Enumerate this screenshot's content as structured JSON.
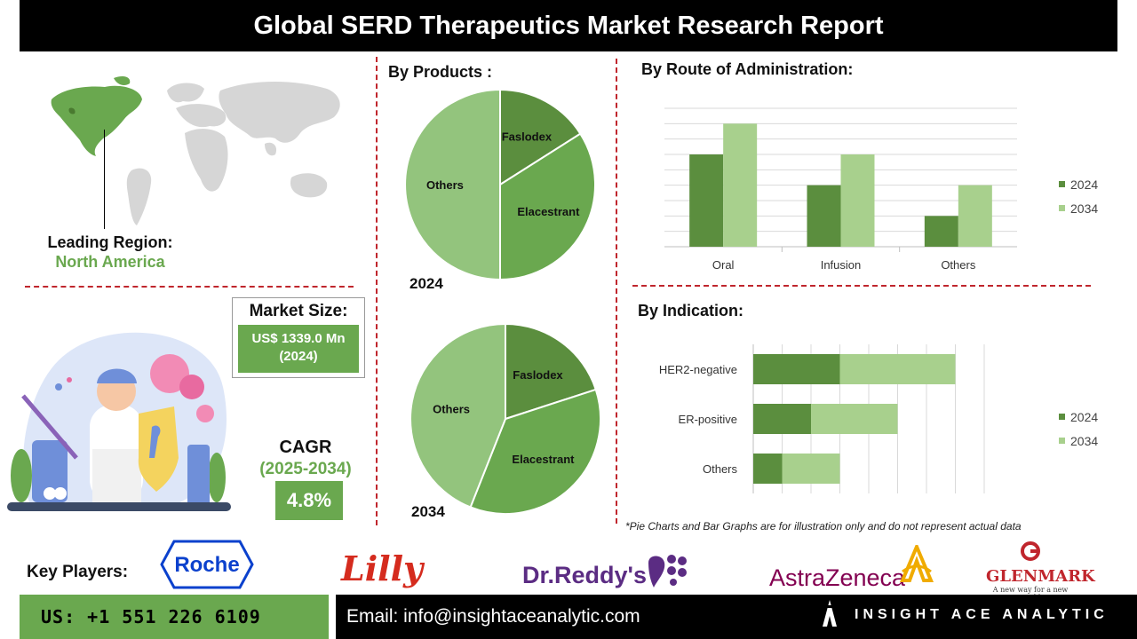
{
  "header": {
    "title": "Global SERD Therapeutics Market Research Report"
  },
  "region": {
    "label": "Leading Region:",
    "value": "North America"
  },
  "market_size": {
    "label": "Market Size:",
    "value_line1": "US$ 1339.0 Mn",
    "value_line2": "(2024)"
  },
  "cagr": {
    "label": "CAGR",
    "period": "(2025-2034)",
    "value": "4.8%"
  },
  "sections": {
    "products": "By Products :",
    "route": "By Route of Administration:",
    "indication": "By Indication:"
  },
  "colors": {
    "dark_green": "#5b8e3e",
    "mid_green": "#6aa84f",
    "light_green": "#93c47d",
    "pale_green": "#a8d08d",
    "accent_red": "#c0262d"
  },
  "chart_data": [
    {
      "type": "pie",
      "title": "2024",
      "slices": [
        {
          "label": "Faslodex",
          "value": 16
        },
        {
          "label": "Elacestrant",
          "value": 34
        },
        {
          "label": "Others",
          "value": 50
        }
      ]
    },
    {
      "type": "pie",
      "title": "2034",
      "slices": [
        {
          "label": "Faslodex",
          "value": 20
        },
        {
          "label": "Elacestrant",
          "value": 36
        },
        {
          "label": "Others",
          "value": 44
        }
      ]
    },
    {
      "type": "bar",
      "categories": [
        "Oral",
        "Infusion",
        "Others"
      ],
      "series": [
        {
          "name": "2024",
          "values": [
            6,
            4,
            2
          ]
        },
        {
          "name": "2034",
          "values": [
            8,
            6,
            4
          ]
        }
      ],
      "ylim": [
        0,
        9
      ],
      "grid": true,
      "legend": "right"
    },
    {
      "type": "bar",
      "orientation": "horizontal",
      "stacked": true,
      "categories": [
        "HER2-negative",
        "ER-positive",
        "Others"
      ],
      "series": [
        {
          "name": "2024",
          "values": [
            3,
            2,
            1
          ]
        },
        {
          "name": "2034",
          "values": [
            4,
            3,
            2
          ]
        }
      ],
      "xlim": [
        0,
        8
      ],
      "grid": true,
      "legend": "right"
    }
  ],
  "footnote": "*Pie Charts and Bar Graphs are for illustration only and do not represent actual data",
  "key_players": {
    "label": "Key Players:",
    "logos": [
      "Roche",
      "Lilly",
      "Dr.Reddy's",
      "AstraZeneca",
      "GLENMARK"
    ],
    "glenmark_tagline": "A new way for a new world"
  },
  "contact": {
    "phone": "US: +1 551 226 6109",
    "email": "Email: info@insightaceanalytic.com",
    "brand": "INSIGHT ACE ANALYTIC"
  }
}
